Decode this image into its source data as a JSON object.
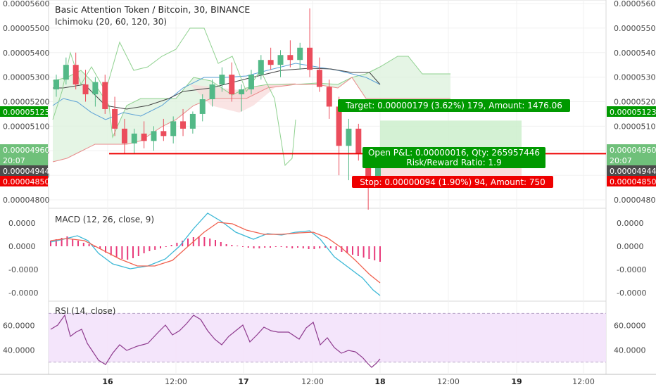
{
  "header": {
    "title": "Basic Attention Token / Bitcoin, 30, BINANCE",
    "indicator": "Ichimoku (20, 60, 120, 30)"
  },
  "axes": {
    "price_ticks": [
      "0.00005600",
      "0.00005500",
      "0.00005400",
      "0.00005300",
      "0.00005200",
      "0.00005100",
      "0.00005000",
      "0.00004900",
      "0.00004800"
    ],
    "price_ticks_left": [
      "0.00005600",
      "0.00005500",
      "0.00005400",
      "0.00005300",
      "0.00005200",
      "0.00005100",
      "0.00005000",
      "0.00004900",
      "0.00004800"
    ],
    "macd_ticks": [
      "0.0000",
      "0.0000",
      "-0.0000",
      "-0.0000"
    ],
    "rsi_ticks": [
      "60.0000",
      "40.0000"
    ],
    "time_ticks": [
      {
        "label": "16",
        "bold": true
      },
      {
        "label": "12:00",
        "bold": false
      },
      {
        "label": "17",
        "bold": true
      },
      {
        "label": "12:00",
        "bold": false
      },
      {
        "label": "18",
        "bold": true
      },
      {
        "label": "12:00",
        "bold": false
      },
      {
        "label": "19",
        "bold": true
      },
      {
        "label": "12:00",
        "bold": false
      }
    ]
  },
  "badges": {
    "left": [
      {
        "text": "0.00005123",
        "color": "#009900"
      },
      {
        "text": "0.00004960",
        "color": "#6fc07a"
      },
      {
        "text": "20:07",
        "color": "#6fc07a"
      },
      {
        "text": "0.00004944",
        "color": "#4c4c4c"
      },
      {
        "text": "0.00004850",
        "color": "#ee0000"
      }
    ],
    "right": [
      {
        "text": "0.00005123",
        "color": "#009900"
      },
      {
        "text": "0.00004960",
        "color": "#6fc07a"
      },
      {
        "text": "20:07",
        "color": "#6fc07a"
      },
      {
        "text": "0.00004944",
        "color": "#4c4c4c"
      },
      {
        "text": "0.00004850",
        "color": "#ee0000"
      }
    ]
  },
  "position": {
    "target_label": "Target: 0.00000179 (3.62%) 179, Amount: 1476.06",
    "pnl_label": "Open P&L: 0.00000016, Qty: 265957446",
    "rr_label": "Risk/Reward Ratio: 1.9",
    "stop_label": "Stop: 0.00000094 (1.90%) 94, Amount: 750",
    "entry": 4.944e-05,
    "target": 5.123e-05,
    "stop": 4.85e-05,
    "entry_line": 4.988e-05
  },
  "macd": {
    "label": "MACD (12, 26, close, 9)"
  },
  "rsi": {
    "label": "RSI (14, close)",
    "upper": 70,
    "lower": 30
  },
  "colors": {
    "up": "#53b987",
    "down": "#eb4d5c",
    "macd_line": "#3cb8d6",
    "signal_line": "#f0614f",
    "histogram": "#e8397a",
    "rsi_line": "#8e3a8e",
    "rsi_band": "#f3e2fb",
    "target_zone": "#cdeecd",
    "stop_zone": "#f9d7d7",
    "entry_line": "#ee0000"
  },
  "chart_data": {
    "type": "candlestick",
    "series": [
      {
        "name": "Basic Attention Token / Bitcoin",
        "values": [
          [
            5.25e-05,
            5.31e-05,
            5.22e-05,
            5.29e-05
          ],
          [
            5.29e-05,
            5.38e-05,
            5.27e-05,
            5.35e-05
          ],
          [
            5.35e-05,
            5.4e-05,
            5.25e-05,
            5.27e-05
          ],
          [
            5.27e-05,
            5.33e-05,
            5.2e-05,
            5.23e-05
          ],
          [
            5.23e-05,
            5.3e-05,
            5.18e-05,
            5.28e-05
          ],
          [
            5.28e-05,
            5.31e-05,
            5.15e-05,
            5.17e-05
          ],
          [
            5.17e-05,
            5.22e-05,
            5.06e-05,
            5.09e-05
          ],
          [
            5.09e-05,
            5.13e-05,
            4.99e-05,
            5.03e-05
          ],
          [
            5.03e-05,
            5.09e-05,
            4.99e-05,
            5.07e-05
          ],
          [
            5.07e-05,
            5.12e-05,
            5.01e-05,
            5.04e-05
          ],
          [
            5.04e-05,
            5.1e-05,
            5e-05,
            5.08e-05
          ],
          [
            5.08e-05,
            5.13e-05,
            5.04e-05,
            5.06e-05
          ],
          [
            5.06e-05,
            5.14e-05,
            5.03e-05,
            5.12e-05
          ],
          [
            5.12e-05,
            5.17e-05,
            5.06e-05,
            5.09e-05
          ],
          [
            5.09e-05,
            5.16e-05,
            5.07e-05,
            5.15e-05
          ],
          [
            5.15e-05,
            5.23e-05,
            5.12e-05,
            5.21e-05
          ],
          [
            5.21e-05,
            5.29e-05,
            5.18e-05,
            5.27e-05
          ],
          [
            5.27e-05,
            5.34e-05,
            5.24e-05,
            5.31e-05
          ],
          [
            5.31e-05,
            5.36e-05,
            5.2e-05,
            5.23e-05
          ],
          [
            5.23e-05,
            5.27e-05,
            5.16e-05,
            5.25e-05
          ],
          [
            5.25e-05,
            5.33e-05,
            5.23e-05,
            5.31e-05
          ],
          [
            5.31e-05,
            5.39e-05,
            5.29e-05,
            5.37e-05
          ],
          [
            5.37e-05,
            5.42e-05,
            5.33e-05,
            5.35e-05
          ],
          [
            5.35e-05,
            5.41e-05,
            5.3e-05,
            5.39e-05
          ],
          [
            5.39e-05,
            5.45e-05,
            5.34e-05,
            5.37e-05
          ],
          [
            5.37e-05,
            5.44e-05,
            5.33e-05,
            5.42e-05
          ],
          [
            5.42e-05,
            5.58e-05,
            5.3e-05,
            5.33e-05
          ],
          [
            5.33e-05,
            5.38e-05,
            5.24e-05,
            5.26e-05
          ],
          [
            5.26e-05,
            5.29e-05,
            5.13e-05,
            5.18e-05
          ],
          [
            5.18e-05,
            5.22e-05,
            4.9e-05,
            5.02e-05
          ],
          [
            5.02e-05,
            5.13e-05,
            4.88e-05,
            5.09e-05
          ],
          [
            5.09e-05,
            5.11e-05,
            4.96e-05,
            4.99e-05
          ],
          [
            4.99e-05,
            5.01e-05,
            4.76e-05,
            4.88e-05
          ],
          [
            4.88e-05,
            4.99e-05,
            4.85e-05,
            4.944e-05
          ]
        ]
      }
    ],
    "x": [
      "16",
      "12:00",
      "17",
      "12:00",
      "18",
      "12:00",
      "19",
      "12:00"
    ],
    "ylim": [
      4.78e-05,
      5.6e-05
    ]
  }
}
